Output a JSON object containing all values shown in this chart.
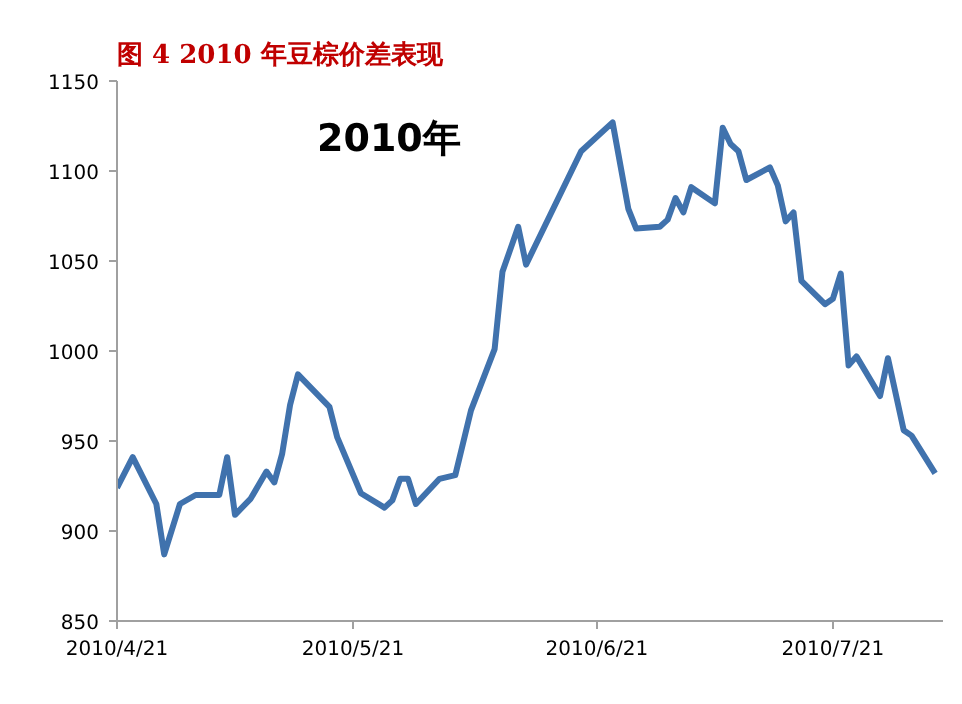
{
  "chart_data": {
    "type": "line",
    "title": "图 4  2010 年豆棕价差表现",
    "annotations": [
      "2010年"
    ],
    "x": [
      "2010-04-21",
      "2010-04-23",
      "2010-04-26",
      "2010-04-27",
      "2010-04-29",
      "2010-05-01",
      "2010-05-04",
      "2010-05-05",
      "2010-05-06",
      "2010-05-08",
      "2010-05-10",
      "2010-05-11",
      "2010-05-12",
      "2010-05-13",
      "2010-05-14",
      "2010-05-18",
      "2010-05-19",
      "2010-05-22",
      "2010-05-25",
      "2010-05-26",
      "2010-05-27",
      "2010-05-28",
      "2010-05-29",
      "2010-06-01",
      "2010-06-03",
      "2010-06-05",
      "2010-06-08",
      "2010-06-09",
      "2010-06-11",
      "2010-06-12",
      "2010-06-19",
      "2010-06-23",
      "2010-06-25",
      "2010-06-26",
      "2010-06-29",
      "2010-06-30",
      "2010-07-01",
      "2010-07-02",
      "2010-07-03",
      "2010-07-06",
      "2010-07-07",
      "2010-07-08",
      "2010-07-09",
      "2010-07-10",
      "2010-07-13",
      "2010-07-14",
      "2010-07-15",
      "2010-07-16",
      "2010-07-17",
      "2010-07-20",
      "2010-07-21",
      "2010-07-22",
      "2010-07-23",
      "2010-07-24",
      "2010-07-27",
      "2010-07-28",
      "2010-07-30",
      "2010-07-31",
      "2010-08-03"
    ],
    "series": [
      {
        "color": "#4072ad",
        "values": [
          924,
          941,
          915,
          887,
          915,
          920,
          920,
          941,
          909,
          918,
          933,
          927,
          943,
          970,
          987,
          969,
          952,
          921,
          913,
          917,
          929,
          929,
          915,
          929,
          931,
          967,
          1001,
          1044,
          1069,
          1048,
          1111,
          1127,
          1079,
          1068,
          1069,
          1073,
          1085,
          1077,
          1091,
          1082,
          1124,
          1115,
          1111,
          1095,
          1102,
          1092,
          1072,
          1077,
          1039,
          1026,
          1029,
          1043,
          992,
          997,
          975,
          996,
          956,
          953,
          932
        ]
      }
    ],
    "xlim": [
      "2010-04-21",
      "2010-08-04"
    ],
    "xticks": [
      {
        "value": "2010-04-21",
        "label": "2010/4/21"
      },
      {
        "value": "2010-05-21",
        "label": "2010/5/21"
      },
      {
        "value": "2010-06-21",
        "label": "2010/6/21"
      },
      {
        "value": "2010-07-21",
        "label": "2010/7/21"
      }
    ],
    "ylim": [
      850,
      1150
    ],
    "yticks": [
      850,
      900,
      950,
      1000,
      1050,
      1100,
      1150
    ],
    "marker": "none",
    "line_style": "solid"
  }
}
